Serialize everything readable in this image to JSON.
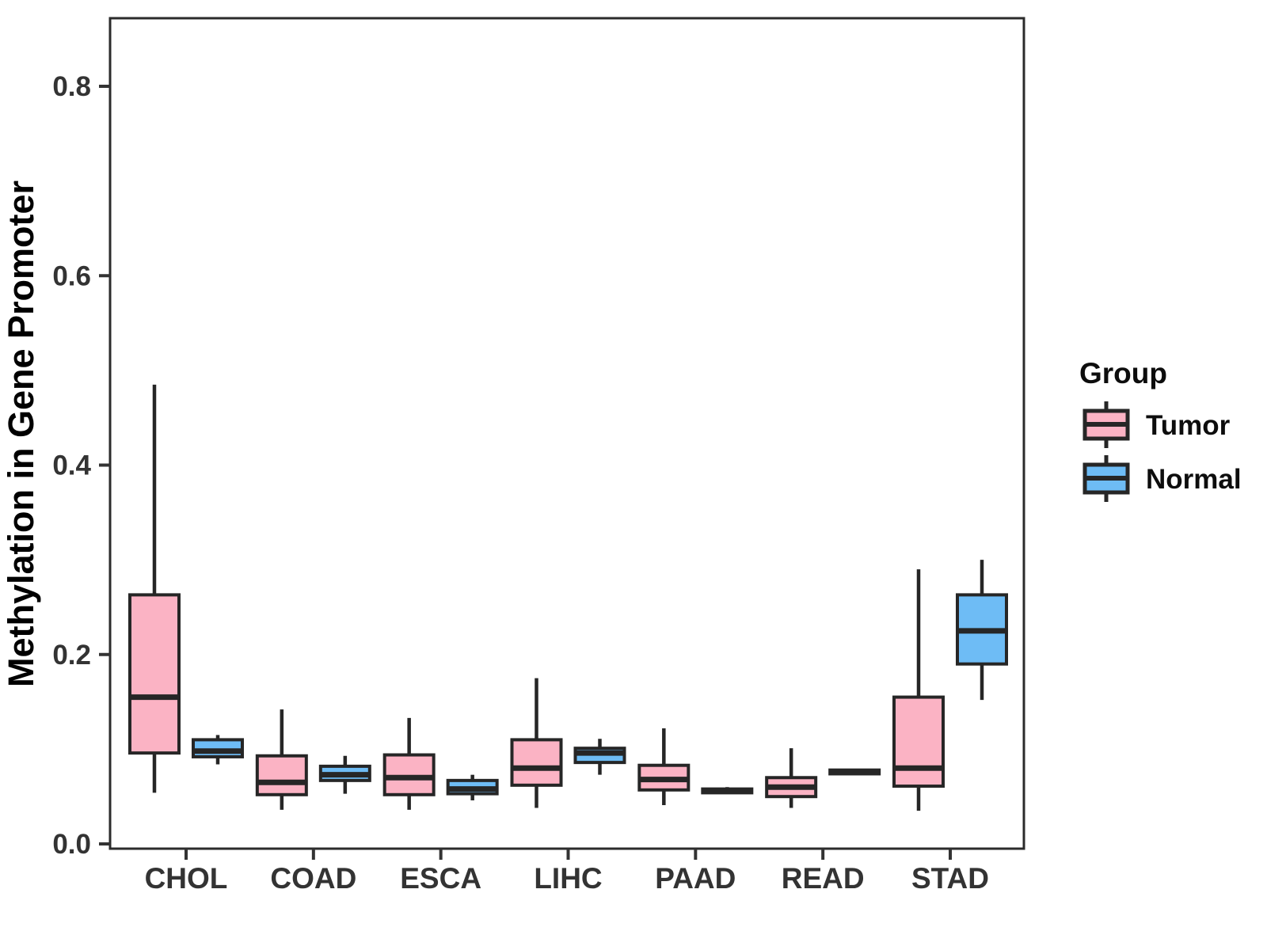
{
  "chart_data": {
    "type": "box",
    "title": "",
    "xlabel": "",
    "ylabel": "Methylation in Gene Promoter",
    "categories": [
      "CHOL",
      "COAD",
      "ESCA",
      "LIHC",
      "PAAD",
      "READ",
      "STAD"
    ],
    "y_axis": {
      "ticks": [
        {
          "value": 0.0,
          "label": "0.0"
        },
        {
          "value": 0.2,
          "label": "0.2"
        },
        {
          "value": 0.4,
          "label": "0.4"
        },
        {
          "value": 0.6,
          "label": "0.6"
        },
        {
          "value": 0.8,
          "label": "0.8"
        }
      ],
      "ylim": [
        0,
        0.875
      ],
      "grid": false
    },
    "legend": {
      "title": "Group",
      "position": "right",
      "entries": [
        {
          "label": "Tumor",
          "color": "#FBB3C4"
        },
        {
          "label": "Normal",
          "color": "#6EBCF5"
        }
      ]
    },
    "colors": {
      "tumor_fill": "#FBB3C4",
      "normal_fill": "#6EBCF5",
      "box_stroke": "#262626",
      "panel_border": "#2B2B2B",
      "axis_text": "#333333"
    },
    "series": [
      {
        "name": "Tumor",
        "color": "#FBB3C4",
        "boxes": [
          {
            "category": "CHOL",
            "low": 0.054,
            "q1": 0.096,
            "median": 0.155,
            "q3": 0.263,
            "high": 0.485
          },
          {
            "category": "COAD",
            "low": 0.036,
            "q1": 0.052,
            "median": 0.065,
            "q3": 0.093,
            "high": 0.142
          },
          {
            "category": "ESCA",
            "low": 0.036,
            "q1": 0.052,
            "median": 0.07,
            "q3": 0.094,
            "high": 0.133
          },
          {
            "category": "LIHC",
            "low": 0.038,
            "q1": 0.062,
            "median": 0.08,
            "q3": 0.11,
            "high": 0.175
          },
          {
            "category": "PAAD",
            "low": 0.041,
            "q1": 0.057,
            "median": 0.068,
            "q3": 0.083,
            "high": 0.122
          },
          {
            "category": "READ",
            "low": 0.038,
            "q1": 0.05,
            "median": 0.06,
            "q3": 0.07,
            "high": 0.101
          },
          {
            "category": "STAD",
            "low": 0.035,
            "q1": 0.061,
            "median": 0.08,
            "q3": 0.155,
            "high": 0.29
          }
        ]
      },
      {
        "name": "Normal",
        "color": "#6EBCF5",
        "boxes": [
          {
            "category": "CHOL",
            "low": 0.084,
            "q1": 0.092,
            "median": 0.098,
            "q3": 0.11,
            "high": 0.115
          },
          {
            "category": "COAD",
            "low": 0.053,
            "q1": 0.067,
            "median": 0.073,
            "q3": 0.082,
            "high": 0.093
          },
          {
            "category": "ESCA",
            "low": 0.046,
            "q1": 0.053,
            "median": 0.058,
            "q3": 0.067,
            "high": 0.073
          },
          {
            "category": "LIHC",
            "low": 0.073,
            "q1": 0.086,
            "median": 0.096,
            "q3": 0.101,
            "high": 0.111
          },
          {
            "category": "PAAD",
            "low": 0.053,
            "q1": 0.054,
            "median": 0.056,
            "q3": 0.058,
            "high": 0.06
          },
          {
            "category": "READ",
            "low": 0.073,
            "q1": 0.074,
            "median": 0.076,
            "q3": 0.078,
            "high": 0.079
          },
          {
            "category": "STAD",
            "low": 0.152,
            "q1": 0.19,
            "median": 0.225,
            "q3": 0.263,
            "high": 0.3
          }
        ]
      }
    ]
  }
}
